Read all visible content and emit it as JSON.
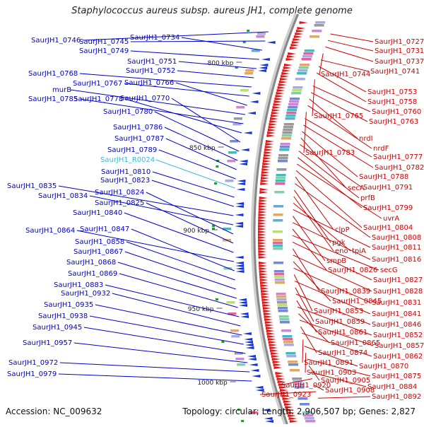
{
  "title": "Staphylococcus aureus subsp. aureus JH1, complete genome",
  "accession": "Accession: NC_009632",
  "topology": "Topology: circular; Length: 2,906,507 bp; Genes: 2,827",
  "colors": {
    "forward_label": "#0000cc",
    "reverse_label": "#cc0000",
    "rna_label": "#33bbdd",
    "backbone": "#888888"
  },
  "kbp_ticks": [
    "800 kbp",
    "850 kbp",
    "900 kbp",
    "950 kbp",
    "1000 kbp"
  ],
  "left_labels": [
    {
      "text": "SaurJH1_0746",
      "kind": "cds"
    },
    {
      "text": "SaurJH1_0745",
      "kind": "cds"
    },
    {
      "text": "SaurJH1_0734",
      "kind": "cds"
    },
    {
      "text": "SaurJH1_0749",
      "kind": "cds"
    },
    {
      "text": "SaurJH1_0751",
      "kind": "cds"
    },
    {
      "text": "SaurJH1_0752",
      "kind": "cds"
    },
    {
      "text": "SaurJH1_0768",
      "kind": "cds"
    },
    {
      "text": "SaurJH1_0767",
      "kind": "cds"
    },
    {
      "text": "SaurJH1_0766",
      "kind": "cds"
    },
    {
      "text": "murB",
      "kind": "cds"
    },
    {
      "text": "SaurJH1_0785",
      "kind": "cds"
    },
    {
      "text": "SaurJH1_0778",
      "kind": "cds"
    },
    {
      "text": "SaurJH1_0770",
      "kind": "cds"
    },
    {
      "text": "SaurJH1_0780",
      "kind": "cds"
    },
    {
      "text": "SaurJH1_0786",
      "kind": "cds"
    },
    {
      "text": "SaurJH1_0787",
      "kind": "cds"
    },
    {
      "text": "SaurJH1_0789",
      "kind": "cds"
    },
    {
      "text": "SaurJH1_R0024",
      "kind": "rna"
    },
    {
      "text": "SaurJH1_0810",
      "kind": "cds"
    },
    {
      "text": "SaurJH1_0823",
      "kind": "cds"
    },
    {
      "text": "SaurJH1_0835",
      "kind": "cds"
    },
    {
      "text": "SaurJH1_0834",
      "kind": "cds"
    },
    {
      "text": "SaurJH1_0824",
      "kind": "cds"
    },
    {
      "text": "SaurJH1_0825",
      "kind": "cds"
    },
    {
      "text": "SaurJH1_0840",
      "kind": "cds"
    },
    {
      "text": "SaurJH1_0864",
      "kind": "cds"
    },
    {
      "text": "SaurJH1_0847",
      "kind": "cds"
    },
    {
      "text": "SaurJH1_0858",
      "kind": "cds"
    },
    {
      "text": "SaurJH1_0867",
      "kind": "cds"
    },
    {
      "text": "SaurJH1_0868",
      "kind": "cds"
    },
    {
      "text": "SaurJH1_0869",
      "kind": "cds"
    },
    {
      "text": "SaurJH1_0883",
      "kind": "cds"
    },
    {
      "text": "SaurJH1_0932",
      "kind": "cds"
    },
    {
      "text": "SaurJH1_0935",
      "kind": "cds"
    },
    {
      "text": "SaurJH1_0938",
      "kind": "cds"
    },
    {
      "text": "SaurJH1_0945",
      "kind": "cds"
    },
    {
      "text": "SaurJH1_0957",
      "kind": "cds"
    },
    {
      "text": "SaurJH1_0972",
      "kind": "cds"
    },
    {
      "text": "SaurJH1_0979",
      "kind": "cds"
    }
  ],
  "right_labels": [
    "SaurJH1_0727",
    "SaurJH1_0731",
    "SaurJH1_0737",
    "SaurJH1_0744",
    "SaurJH1_0741",
    "SaurJH1_0753",
    "SaurJH1_0758",
    "SaurJH1_0765",
    "SaurJH1_0760",
    "SaurJH1_0763",
    "nrdI",
    "nrdF",
    "SaurJH1_0783",
    "SaurJH1_0777",
    "SaurJH1_0782",
    "SaurJH1_0788",
    "secA",
    "SaurJH1_0791",
    "prfB",
    "SaurJH1_0799",
    "uvrA",
    "SaurJH1_0804",
    "clpP",
    "SaurJH1_0808",
    "pgk",
    "eno",
    "tpiA",
    "SaurJH1_0811",
    "smpB",
    "SaurJH1_0816",
    "SaurJH1_0826",
    "secG",
    "SaurJH1_0827",
    "SaurJH1_0839",
    "SaurJH1_0828",
    "SaurJH1_0845",
    "SaurJH1_0831",
    "SaurJH1_0853",
    "SaurJH1_0841",
    "SaurJH1_0859",
    "SaurJH1_0846",
    "SaurJH1_0861",
    "SaurJH1_0852",
    "SaurJH1_0865",
    "SaurJH1_0857",
    "SaurJH1_0874",
    "SaurJH1_0862",
    "SaurJH1_0891",
    "SaurJH1_0870",
    "SaurJH1_0903",
    "SaurJH1_0875",
    "SaurJH1_0905",
    "SaurJH1_0884",
    "SaurJH1_0920",
    "SaurJH1_0908",
    "SaurJH1_0923",
    "SaurJH1_0892"
  ]
}
